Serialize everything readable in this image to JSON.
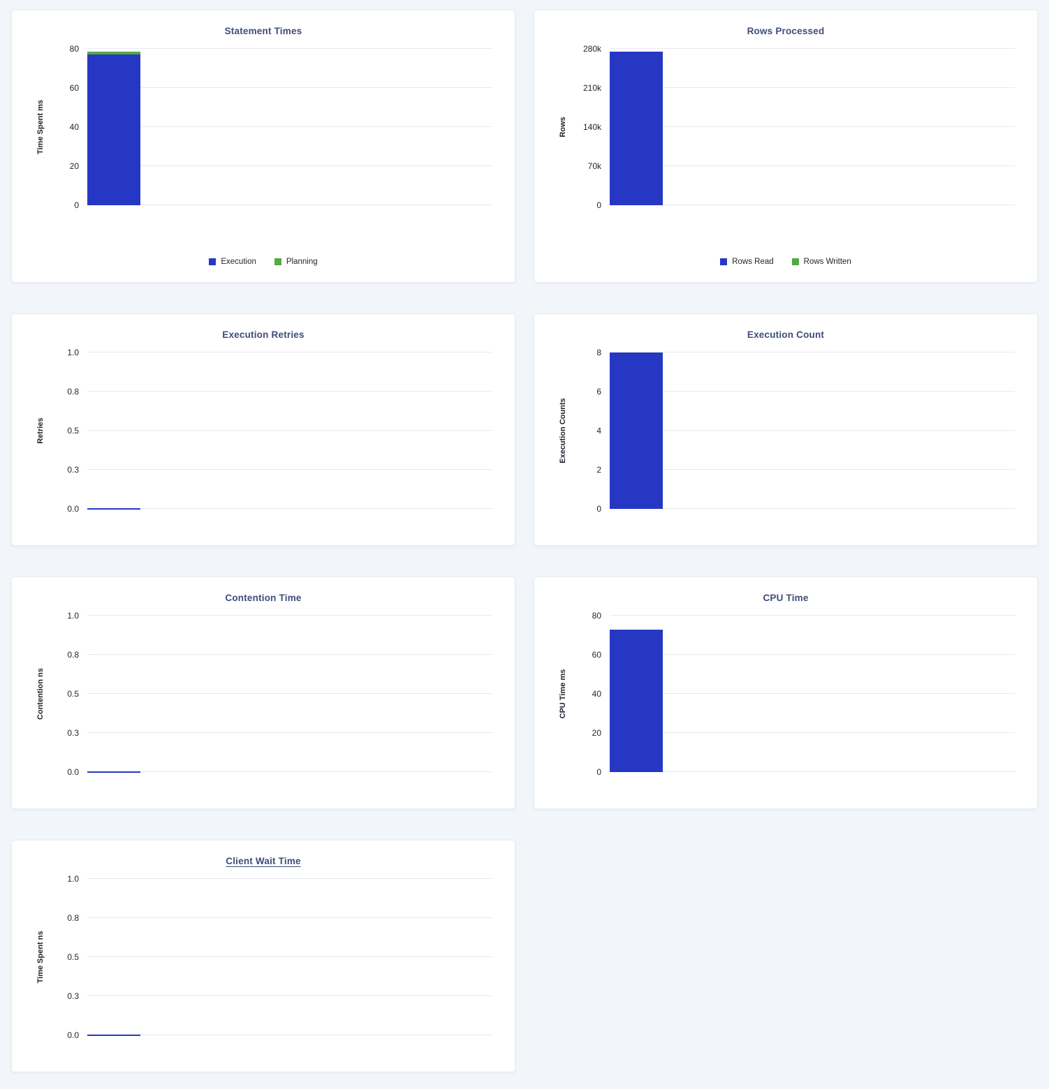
{
  "page": {
    "background_color": "#f2f5f9",
    "card_background": "#ffffff"
  },
  "colors": {
    "blue": "#2637c4",
    "green": "#55a846",
    "title": "#3e4d7a",
    "tick": "#20262e",
    "gridline": "#e8eaee"
  },
  "chart_data": [
    {
      "key": "statement-times",
      "type": "bar",
      "title": "Statement Times",
      "ylabel": "Time Spent ms",
      "ylim": [
        0,
        80
      ],
      "yticks": [
        0,
        20,
        40,
        60,
        80
      ],
      "ytick_labels": [
        "0",
        "20",
        "40",
        "60",
        "80"
      ],
      "stacked": true,
      "show_legend": true,
      "title_underline": false,
      "series": [
        {
          "name": "Execution",
          "value": 77,
          "color_key": "blue"
        },
        {
          "name": "Planning",
          "value": 1.5,
          "color_key": "green"
        }
      ]
    },
    {
      "key": "rows-processed",
      "type": "bar",
      "title": "Rows Processed",
      "ylabel": "Rows",
      "ylim": [
        0,
        280000
      ],
      "yticks": [
        0,
        70000,
        140000,
        210000,
        280000
      ],
      "ytick_labels": [
        "0",
        "70k",
        "140k",
        "210k",
        "280k"
      ],
      "stacked": true,
      "show_legend": true,
      "title_underline": false,
      "series": [
        {
          "name": "Rows Read",
          "value": 275000,
          "color_key": "blue"
        },
        {
          "name": "Rows Written",
          "value": 0,
          "color_key": "green"
        }
      ]
    },
    {
      "key": "execution-retries",
      "type": "bar",
      "title": "Execution Retries",
      "ylabel": "Retries",
      "ylim": [
        0,
        1
      ],
      "yticks": [
        0,
        0.25,
        0.5,
        0.75,
        1.0
      ],
      "ytick_labels": [
        "0.0",
        "0.3",
        "0.5",
        "0.8",
        "1.0"
      ],
      "stacked": false,
      "show_legend": false,
      "title_underline": false,
      "series": [
        {
          "name": "Retries",
          "value": 0,
          "color_key": "blue"
        }
      ]
    },
    {
      "key": "execution-count",
      "type": "bar",
      "title": "Execution Count",
      "ylabel": "Execution Counts",
      "ylim": [
        0,
        8
      ],
      "yticks": [
        0,
        2,
        4,
        6,
        8
      ],
      "ytick_labels": [
        "0",
        "2",
        "4",
        "6",
        "8"
      ],
      "stacked": false,
      "show_legend": false,
      "title_underline": false,
      "series": [
        {
          "name": "Execution Count",
          "value": 8,
          "color_key": "blue"
        }
      ]
    },
    {
      "key": "contention-time",
      "type": "bar",
      "title": "Contention Time",
      "ylabel": "Contention ns",
      "ylim": [
        0,
        1
      ],
      "yticks": [
        0,
        0.25,
        0.5,
        0.75,
        1.0
      ],
      "ytick_labels": [
        "0.0",
        "0.3",
        "0.5",
        "0.8",
        "1.0"
      ],
      "stacked": false,
      "show_legend": false,
      "title_underline": false,
      "series": [
        {
          "name": "Contention",
          "value": 0,
          "color_key": "blue"
        }
      ]
    },
    {
      "key": "cpu-time",
      "type": "bar",
      "title": "CPU Time",
      "ylabel": "CPU Time ms",
      "ylim": [
        0,
        80
      ],
      "yticks": [
        0,
        20,
        40,
        60,
        80
      ],
      "ytick_labels": [
        "0",
        "20",
        "40",
        "60",
        "80"
      ],
      "stacked": false,
      "show_legend": false,
      "title_underline": false,
      "series": [
        {
          "name": "CPU Time",
          "value": 73,
          "color_key": "blue"
        }
      ]
    },
    {
      "key": "client-wait-time",
      "type": "bar",
      "title": "Client Wait Time",
      "ylabel": "Time Spent ns",
      "ylim": [
        0,
        1
      ],
      "yticks": [
        0,
        0.25,
        0.5,
        0.75,
        1.0
      ],
      "ytick_labels": [
        "0.0",
        "0.3",
        "0.5",
        "0.8",
        "1.0"
      ],
      "stacked": false,
      "show_legend": false,
      "title_underline": true,
      "series": [
        {
          "name": "Client Wait Time",
          "value": 0,
          "color_key": "blue"
        }
      ]
    }
  ]
}
